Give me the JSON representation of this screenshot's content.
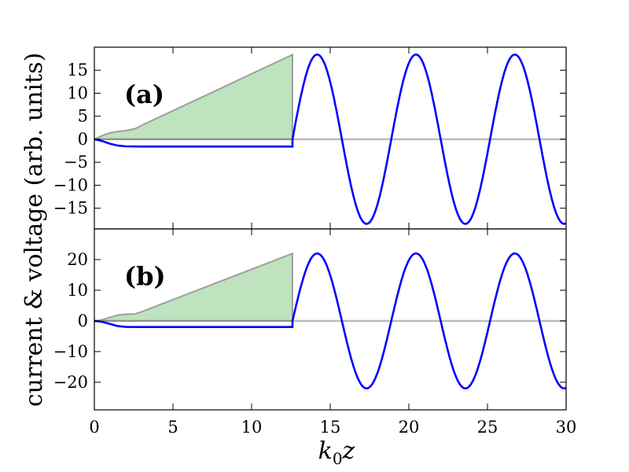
{
  "figure": {
    "ylabel": "current & voltage (arb. units)",
    "xlabel_main": "k",
    "xlabel_sub": "0",
    "xlabel_tail": "z"
  },
  "chart_data": [
    {
      "type": "line",
      "panel_label": "(a)",
      "xlim": [
        0,
        30
      ],
      "ylim": [
        -19.5,
        20
      ],
      "xticks": [
        0,
        5,
        10,
        15,
        20,
        25,
        30
      ],
      "yticks": [
        -15,
        -10,
        -5,
        0,
        5,
        10,
        15
      ],
      "grid": false,
      "series": [
        {
          "kind": "filled_area",
          "color": "#2ca02c",
          "points": [
            [
              0,
              0
            ],
            [
              0.5,
              0.8
            ],
            [
              1.0,
              1.4
            ],
            [
              1.5,
              1.7
            ],
            [
              2.0,
              1.85
            ],
            [
              2.6,
              2.3
            ],
            [
              3.0,
              3.0
            ],
            [
              12.6,
              18.4
            ],
            [
              12.6,
              0
            ]
          ]
        },
        {
          "kind": "line",
          "color": "#0000ff",
          "points": [
            [
              0,
              0
            ],
            [
              0.5,
              -0.4
            ],
            [
              1.0,
              -1.0
            ],
            [
              1.5,
              -1.4
            ],
            [
              2.0,
              -1.55
            ],
            [
              3.0,
              -1.6
            ],
            [
              12.6,
              -1.6
            ]
          ],
          "sine": {
            "x_start": 12.6,
            "x_end": 30,
            "amplitude": 18.4,
            "offset": 0,
            "period": 6.283,
            "phase_x": 12.6
          }
        },
        {
          "kind": "baseline",
          "color": "#bbbbbb",
          "y": 0
        }
      ]
    },
    {
      "type": "line",
      "panel_label": "(b)",
      "xlim": [
        0,
        30
      ],
      "ylim": [
        -29,
        30
      ],
      "xticks": [
        0,
        5,
        10,
        15,
        20,
        25,
        30
      ],
      "xticklabels": [
        "0",
        "5",
        "10",
        "15",
        "20",
        "25",
        "30"
      ],
      "yticks": [
        -20,
        -10,
        0,
        10,
        20
      ],
      "grid": false,
      "series": [
        {
          "kind": "filled_area",
          "color": "#2ca02c",
          "points": [
            [
              0,
              0
            ],
            [
              0.5,
              0.4
            ],
            [
              1.0,
              1.2
            ],
            [
              1.5,
              1.9
            ],
            [
              2.0,
              2.2
            ],
            [
              2.6,
              2.3
            ],
            [
              3.0,
              3.0
            ],
            [
              12.6,
              22.0
            ],
            [
              12.6,
              0
            ]
          ]
        },
        {
          "kind": "line",
          "color": "#0000ff",
          "points": [
            [
              0,
              0
            ],
            [
              0.5,
              -0.3
            ],
            [
              1.0,
              -1.0
            ],
            [
              1.5,
              -1.7
            ],
            [
              2.0,
              -1.95
            ],
            [
              3.0,
              -2.0
            ],
            [
              12.6,
              -2.0
            ]
          ],
          "sine": {
            "x_start": 12.6,
            "x_end": 30,
            "amplitude": 22.0,
            "offset": 0,
            "period": 6.283,
            "phase_x": 12.6
          }
        },
        {
          "kind": "baseline",
          "color": "#bbbbbb",
          "y": 0
        }
      ]
    }
  ]
}
